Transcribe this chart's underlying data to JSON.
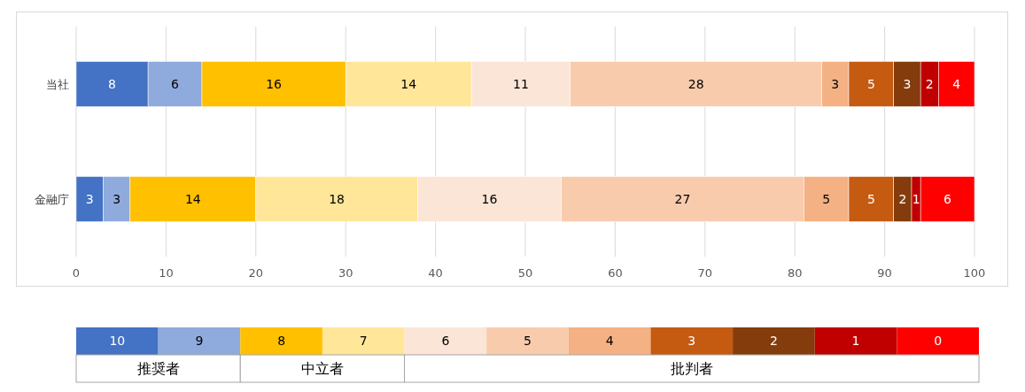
{
  "chart_data": {
    "type": "bar",
    "orientation": "horizontal",
    "stacked": true,
    "categories": [
      "当社",
      "金融庁"
    ],
    "series": [
      {
        "name": "10",
        "color": "#4472c4",
        "values": [
          8,
          3
        ]
      },
      {
        "name": "9",
        "color": "#8faadc",
        "values": [
          6,
          3
        ]
      },
      {
        "name": "8",
        "color": "#ffc000",
        "values": [
          16,
          14
        ]
      },
      {
        "name": "7",
        "color": "#ffe699",
        "values": [
          14,
          18
        ]
      },
      {
        "name": "6",
        "color": "#fbe5d6",
        "values": [
          11,
          16
        ]
      },
      {
        "name": "5",
        "color": "#f8cbad",
        "values": [
          28,
          27
        ]
      },
      {
        "name": "4",
        "color": "#f4b183",
        "values": [
          3,
          5
        ]
      },
      {
        "name": "3",
        "color": "#c55a11",
        "values": [
          5,
          5
        ]
      },
      {
        "name": "2",
        "color": "#843c0c",
        "values": [
          3,
          2
        ]
      },
      {
        "name": "1",
        "color": "#c00000",
        "values": [
          2,
          1
        ]
      },
      {
        "name": "0",
        "color": "#ff0000",
        "values": [
          4,
          6
        ]
      }
    ],
    "xlim": [
      0,
      100
    ],
    "xticks": [
      0,
      10,
      20,
      30,
      40,
      50,
      60,
      70,
      80,
      90,
      100
    ],
    "grid": "x",
    "data_labels": true,
    "legend": "bottom",
    "annotations": [
      "推奨者",
      "中立者",
      "批判者"
    ]
  }
}
